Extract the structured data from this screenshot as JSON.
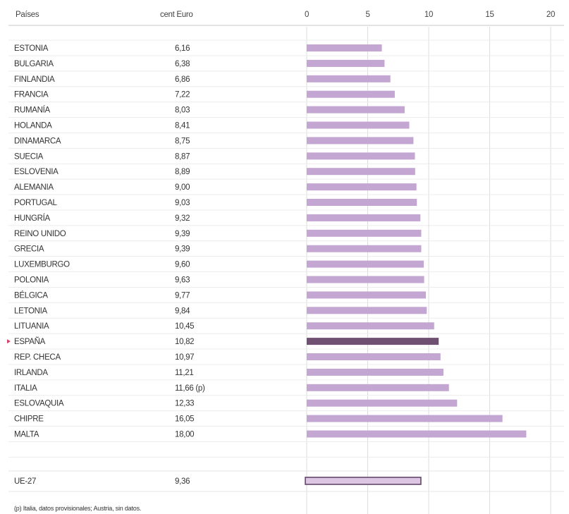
{
  "chart_data": {
    "type": "bar",
    "orientation": "horizontal",
    "headers": {
      "country": "Países",
      "value": "cent Euro"
    },
    "x_ticks": [
      "0",
      "5",
      "10",
      "15",
      "20"
    ],
    "xlim": [
      0,
      20
    ],
    "grid": true,
    "bar_color": "#c3a6d1",
    "highlight_color": "#6f4f72",
    "categories": [
      "ESTONIA",
      "BULGARIA",
      "FINLANDIA",
      "FRANCIA",
      "RUMANÍA",
      "HOLANDA",
      "DINAMARCA",
      "SUECIA",
      "ESLOVENIA",
      "ALEMANIA",
      "PORTUGAL",
      "HUNGRÍA",
      "REINO UNIDO",
      "GRECIA",
      "LUXEMBURGO",
      "POLONIA",
      "BÉLGICA",
      "LETONIA",
      "LITUANIA",
      "ESPAÑA",
      "REP. CHECA",
      "IRLANDA",
      "ITALIA",
      "ESLOVAQUIA",
      "CHIPRE",
      "MALTA"
    ],
    "values": [
      6.16,
      6.38,
      6.86,
      7.22,
      8.03,
      8.41,
      8.75,
      8.87,
      8.89,
      9.0,
      9.03,
      9.32,
      9.39,
      9.39,
      9.6,
      9.63,
      9.77,
      9.84,
      10.45,
      10.82,
      10.97,
      11.21,
      11.66,
      12.33,
      16.05,
      18.0
    ],
    "value_labels": [
      "6,16",
      "6,38",
      "6,86",
      "7,22",
      "8,03",
      "8,41",
      "8,75",
      "8,87",
      "8,89",
      "9,00",
      "9,03",
      "9,32",
      "9,39",
      "9,39",
      "9,60",
      "9,63",
      "9,77",
      "9,84",
      "10,45",
      "10,82",
      "10,97",
      "11,21",
      "11,66 (p)",
      "12,33",
      "16,05",
      "18,00"
    ],
    "highlight": "ESPAÑA",
    "average": {
      "label": "UE-27",
      "value": 9.36,
      "value_label": "9,36"
    },
    "footnote": "(p) Italia, datos provisionales; Austria, sin datos."
  }
}
